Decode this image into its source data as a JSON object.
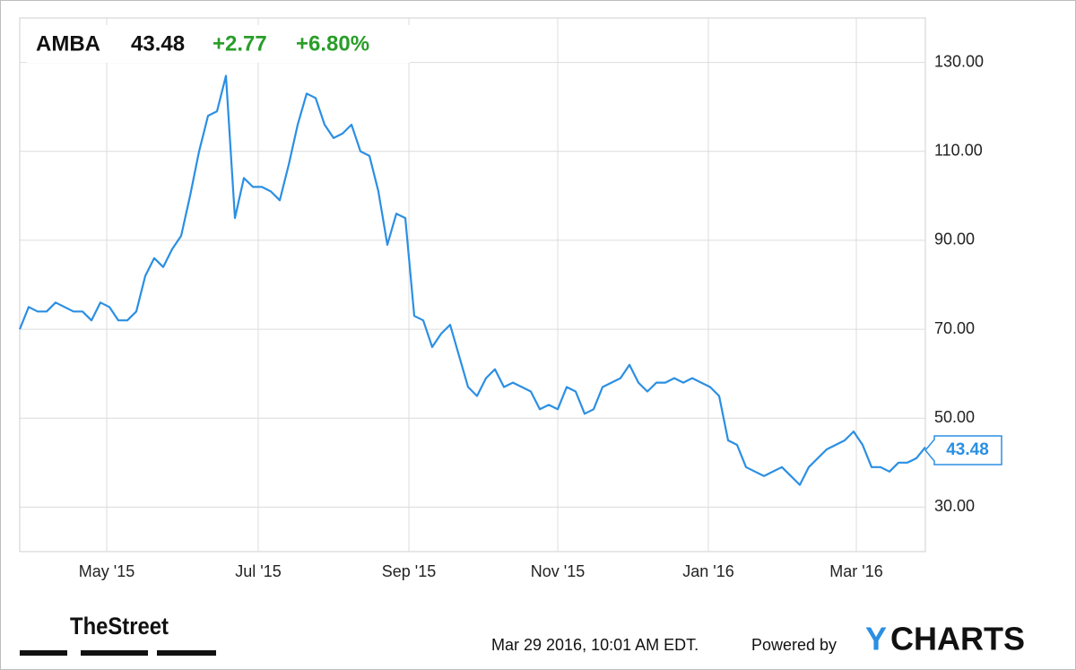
{
  "chart_data": {
    "type": "line",
    "ticker": "AMBA",
    "price": "43.48",
    "change": "+2.77",
    "change_pct": "+6.80%",
    "series": [
      {
        "color": "#2b8fe3",
        "values": [
          70,
          75,
          74,
          74,
          76,
          75,
          74,
          74,
          72,
          76,
          75,
          72,
          72,
          74,
          82,
          86,
          84,
          88,
          91,
          100,
          110,
          118,
          119,
          127,
          95,
          104,
          102,
          102,
          101,
          99,
          107,
          116,
          123,
          122,
          116,
          113,
          114,
          116,
          110,
          109,
          101,
          89,
          96,
          95,
          73,
          72,
          66,
          69,
          71,
          64,
          57,
          55,
          59,
          61,
          57,
          58,
          57,
          56,
          52,
          53,
          52,
          57,
          56,
          51,
          52,
          57,
          58,
          59,
          62,
          58,
          56,
          58,
          58,
          59,
          58,
          59,
          58,
          57,
          55,
          45,
          44,
          39,
          38,
          37,
          38,
          39,
          37,
          35,
          39,
          41,
          43,
          44,
          45,
          47,
          44,
          39,
          39,
          38,
          40,
          40,
          41,
          43.48
        ]
      }
    ],
    "xlim": [
      0,
      101
    ],
    "xticks": [
      {
        "value": 9.7,
        "label": "May '15"
      },
      {
        "value": 26.6,
        "label": "Jul '15"
      },
      {
        "value": 43.4,
        "label": "Sep '15"
      },
      {
        "value": 60,
        "label": "Nov '15"
      },
      {
        "value": 76.8,
        "label": "Jan '16"
      },
      {
        "value": 93.3,
        "label": "Mar '16"
      }
    ],
    "ylim": [
      20,
      140
    ],
    "yticks": [
      {
        "value": 30,
        "label": "30.00"
      },
      {
        "value": 50,
        "label": "50.00"
      },
      {
        "value": 70,
        "label": "70.00"
      },
      {
        "value": 90,
        "label": "90.00"
      },
      {
        "value": 110,
        "label": "110.00"
      },
      {
        "value": 130,
        "label": "130.00"
      }
    ],
    "grid": true,
    "source_logo": "TheStreet",
    "timestamp": "Mar 29 2016, 10:01 AM EDT.",
    "powered_by": "Powered by",
    "brand": [
      "Y",
      "CHARTS"
    ]
  }
}
